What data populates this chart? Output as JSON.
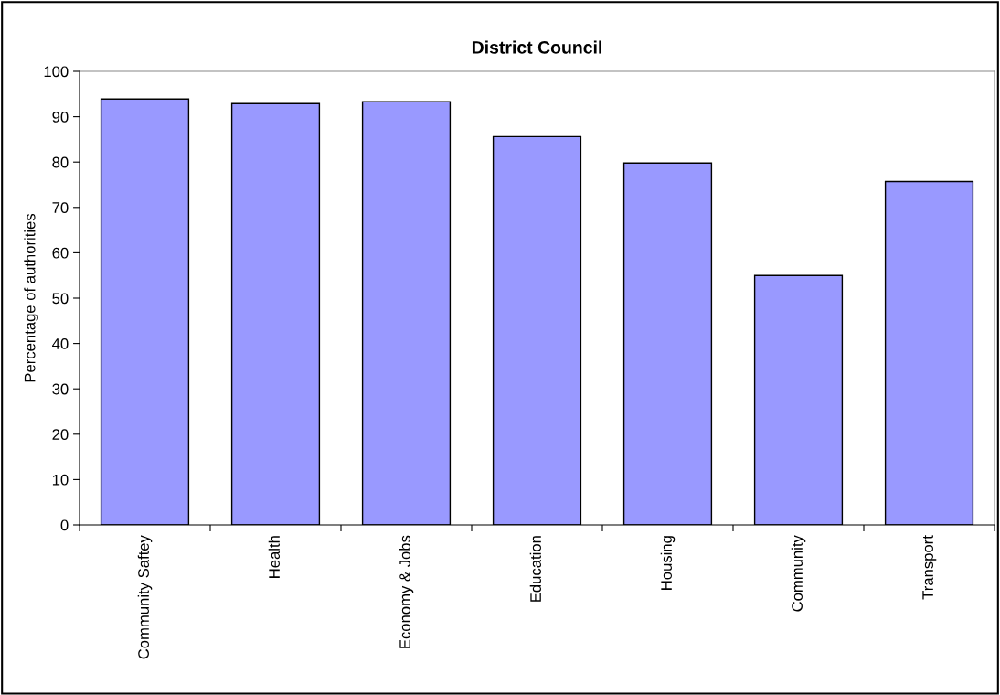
{
  "chart_data": {
    "type": "bar",
    "title": "District Council",
    "ylabel": "Percentage of authorities",
    "categories": [
      "Community Saftey",
      "Health",
      "Economy & Jobs",
      "Education",
      "Housing",
      "Community",
      "Transport"
    ],
    "values": [
      93.9,
      92.9,
      93.3,
      85.6,
      79.8,
      55.0,
      75.7
    ],
    "color": "#9999ff",
    "ylim": [
      0,
      100
    ],
    "yticks": [
      0,
      10,
      20,
      30,
      40,
      50,
      60,
      70,
      80,
      90,
      100
    ],
    "grid": false
  }
}
